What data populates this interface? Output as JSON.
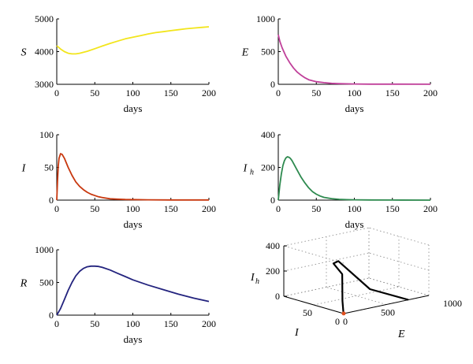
{
  "chart_data": [
    {
      "id": "S",
      "type": "line",
      "ylabel": "S",
      "xlabel": "days",
      "color": "#f2e51c",
      "xlim": [
        0,
        200
      ],
      "ylim": [
        3000,
        5000
      ],
      "xticks": [
        0,
        50,
        100,
        150,
        200
      ],
      "yticks": [
        3000,
        4000,
        5000
      ],
      "xticklabels": [
        "0",
        "50",
        "100",
        "150",
        "200"
      ],
      "yticklabels": [
        "3000",
        "4000",
        "5000"
      ],
      "x": [
        0,
        5,
        10,
        15,
        20,
        25,
        30,
        40,
        50,
        60,
        70,
        80,
        90,
        100,
        110,
        120,
        130,
        140,
        150,
        160,
        170,
        180,
        190,
        200
      ],
      "y": [
        4180,
        4080,
        4000,
        3950,
        3930,
        3930,
        3950,
        4010,
        4090,
        4170,
        4250,
        4320,
        4390,
        4440,
        4490,
        4540,
        4580,
        4610,
        4640,
        4670,
        4700,
        4720,
        4740,
        4760
      ]
    },
    {
      "id": "E",
      "type": "line",
      "ylabel": "E",
      "xlabel": "days",
      "color": "#c0409a",
      "xlim": [
        0,
        200
      ],
      "ylim": [
        0,
        1000
      ],
      "xticks": [
        0,
        50,
        100,
        150,
        200
      ],
      "yticks": [
        0,
        500,
        1000
      ],
      "xticklabels": [
        "0",
        "50",
        "100",
        "150",
        "200"
      ],
      "yticklabels": [
        "0",
        "500",
        "1000"
      ],
      "x": [
        0,
        2,
        5,
        10,
        15,
        20,
        25,
        30,
        35,
        40,
        50,
        60,
        70,
        80,
        100,
        120,
        150,
        200
      ],
      "y": [
        760,
        660,
        560,
        430,
        330,
        250,
        185,
        140,
        100,
        70,
        40,
        25,
        15,
        10,
        5,
        3,
        2,
        1
      ]
    },
    {
      "id": "I",
      "type": "line",
      "ylabel": "I",
      "xlabel": "days",
      "color": "#c8380f",
      "xlim": [
        0,
        200
      ],
      "ylim": [
        0,
        100
      ],
      "xticks": [
        0,
        50,
        100,
        150,
        200
      ],
      "yticks": [
        0,
        50,
        100
      ],
      "xticklabels": [
        "0",
        "50",
        "100",
        "150",
        "200"
      ],
      "yticklabels": [
        "0",
        "50",
        "100"
      ],
      "x": [
        0,
        1,
        2,
        3,
        5,
        7,
        10,
        15,
        20,
        25,
        30,
        35,
        40,
        45,
        50,
        55,
        60,
        70,
        80,
        90,
        100,
        120,
        150,
        200
      ],
      "y": [
        0,
        30,
        52,
        64,
        71,
        70,
        64,
        50,
        38,
        28,
        21,
        16,
        12,
        9,
        7,
        5,
        4,
        2,
        1.5,
        1,
        0.8,
        0.5,
        0.3,
        0.2
      ]
    },
    {
      "id": "Ih",
      "type": "line",
      "ylabel": "I",
      "ylabel_sub": "h",
      "xlabel": "days",
      "color": "#2e8a4f",
      "xlim": [
        0,
        200
      ],
      "ylim": [
        0,
        400
      ],
      "xticks": [
        0,
        50,
        100,
        150,
        200
      ],
      "yticks": [
        0,
        200,
        400
      ],
      "xticklabels": [
        "0",
        "50",
        "100",
        "150",
        "200"
      ],
      "yticklabels": [
        "0",
        "200",
        "400"
      ],
      "x": [
        0,
        2,
        4,
        6,
        8,
        10,
        12,
        14,
        16,
        18,
        20,
        25,
        30,
        35,
        40,
        45,
        50,
        55,
        60,
        70,
        80,
        90,
        100,
        120,
        150,
        200
      ],
      "y": [
        0,
        90,
        160,
        210,
        240,
        258,
        265,
        262,
        255,
        242,
        225,
        182,
        140,
        105,
        75,
        52,
        36,
        25,
        17,
        9,
        5,
        3,
        2,
        1,
        0.5,
        0.2
      ]
    },
    {
      "id": "R",
      "type": "line",
      "ylabel": "R",
      "xlabel": "days",
      "color": "#23237e",
      "xlim": [
        0,
        200
      ],
      "ylim": [
        0,
        1000
      ],
      "xticks": [
        0,
        50,
        100,
        150,
        200
      ],
      "yticks": [
        0,
        500,
        1000
      ],
      "xticklabels": [
        "0",
        "50",
        "100",
        "150",
        "200"
      ],
      "yticklabels": [
        "0",
        "500",
        "1000"
      ],
      "x": [
        0,
        5,
        10,
        15,
        20,
        25,
        30,
        35,
        40,
        45,
        50,
        55,
        60,
        70,
        80,
        90,
        100,
        120,
        140,
        160,
        180,
        200
      ],
      "y": [
        0,
        100,
        240,
        380,
        500,
        600,
        670,
        715,
        740,
        750,
        750,
        745,
        730,
        690,
        640,
        590,
        540,
        460,
        390,
        320,
        260,
        210
      ]
    },
    {
      "id": "phase",
      "type": "line3d",
      "xlabel": "I",
      "ylabel": "E",
      "zlabel": "I",
      "zlabel_sub": "h",
      "color": "#000000",
      "marker_color": "#e05020",
      "I_ticks": [
        0,
        50
      ],
      "E_ticks": [
        0,
        500,
        1000
      ],
      "Ih_ticks": [
        0,
        200,
        400
      ],
      "I_ticklabels": [
        "0",
        "50"
      ],
      "E_ticklabels": [
        "0",
        "500",
        "1000"
      ],
      "Ih_ticklabels": [
        "0",
        "200",
        "400"
      ],
      "I_range": [
        0,
        100
      ],
      "E_range": [
        0,
        1000
      ],
      "Ih_range": [
        0,
        400
      ],
      "I": [
        0,
        50,
        70,
        64,
        38,
        12,
        2,
        0.2
      ],
      "E": [
        760,
        660,
        430,
        330,
        250,
        70,
        10,
        1
      ],
      "Ih": [
        0,
        30,
        258,
        262,
        225,
        75,
        5,
        0.2
      ]
    }
  ]
}
